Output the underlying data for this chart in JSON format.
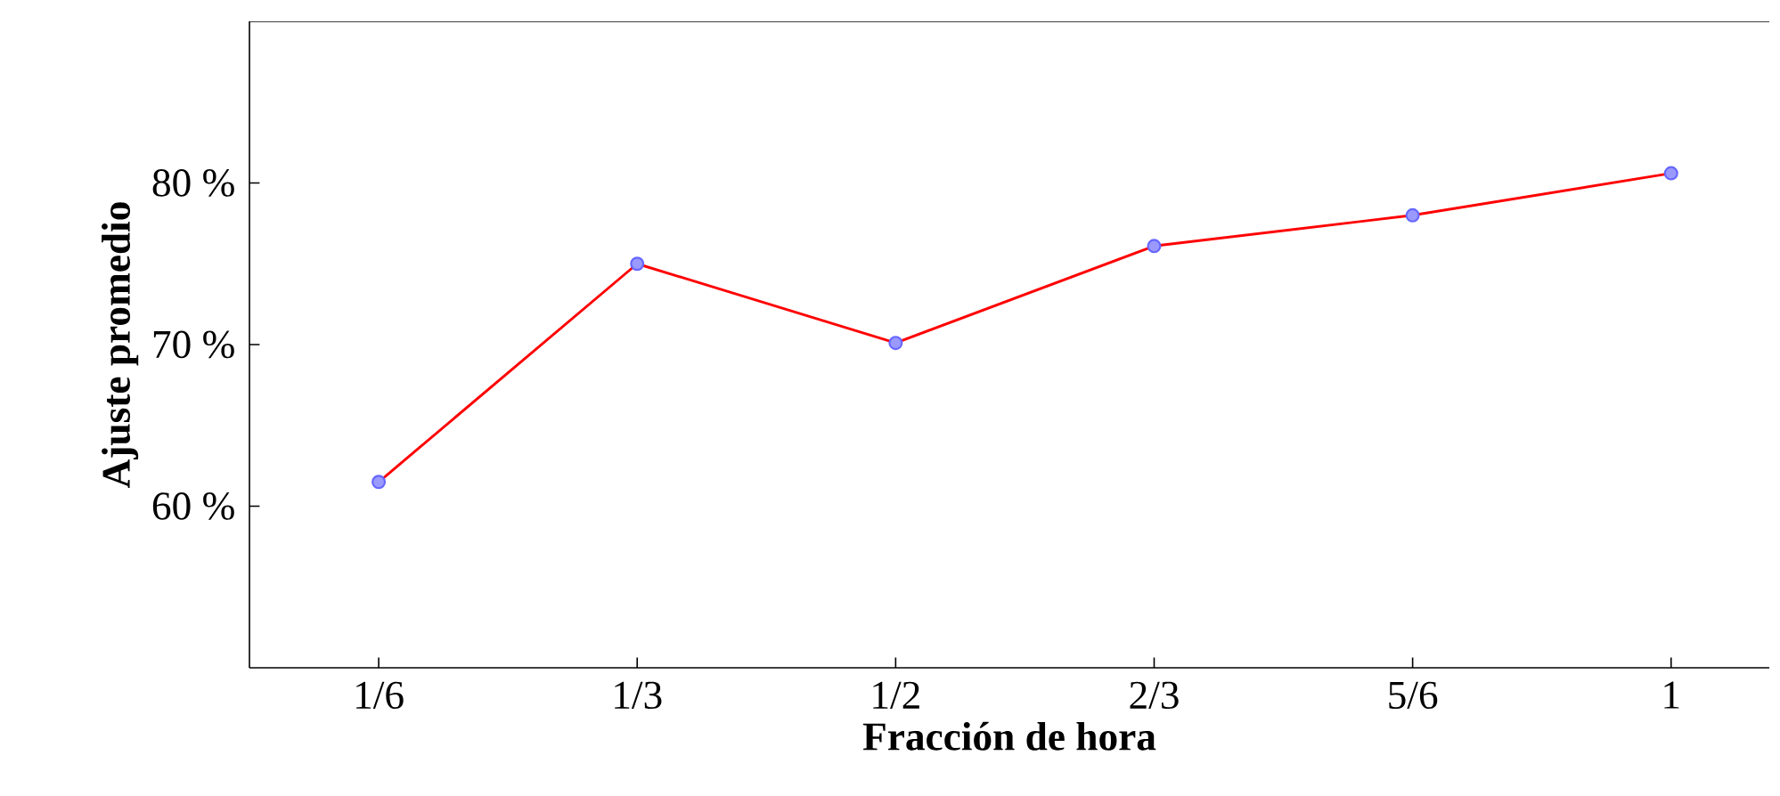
{
  "chart_data": {
    "type": "line",
    "xlabel": "Fracción de hora",
    "ylabel": "Ajuste promedio",
    "categories": [
      "1/6",
      "1/3",
      "1/2",
      "2/3",
      "5/6",
      "1"
    ],
    "series": [
      {
        "color": "#ff0000",
        "values": [
          61.5,
          75.0,
          70.1,
          76.1,
          78.0,
          80.6
        ]
      }
    ],
    "ylim": [
      50,
      90
    ],
    "yticks": [
      {
        "value": 60,
        "label": "60 %"
      },
      {
        "value": 70,
        "label": "70 %"
      },
      {
        "value": 80,
        "label": "80 %"
      }
    ],
    "marker": "circle",
    "grid": false
  }
}
